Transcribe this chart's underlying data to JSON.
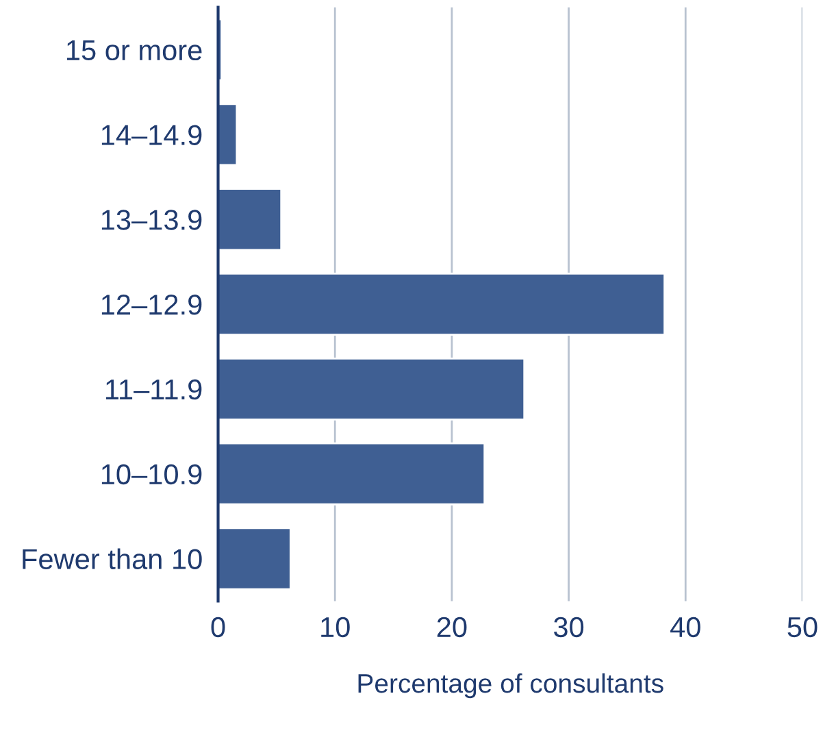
{
  "chart_data": {
    "type": "bar",
    "orientation": "horizontal",
    "xlabel": "Percentage of consultants",
    "categories": [
      "15 or more",
      "14–14.9",
      "13–13.9",
      "12–12.9",
      "11–11.9",
      "10–10.9",
      "Fewer than 10"
    ],
    "values": [
      0.3,
      1.6,
      5.4,
      38.2,
      26.2,
      22.8,
      6.2
    ],
    "color": "#3f5f93",
    "xlim": [
      0,
      50
    ],
    "xticks": [
      0,
      10,
      20,
      30,
      40,
      50
    ],
    "grid": "x"
  }
}
